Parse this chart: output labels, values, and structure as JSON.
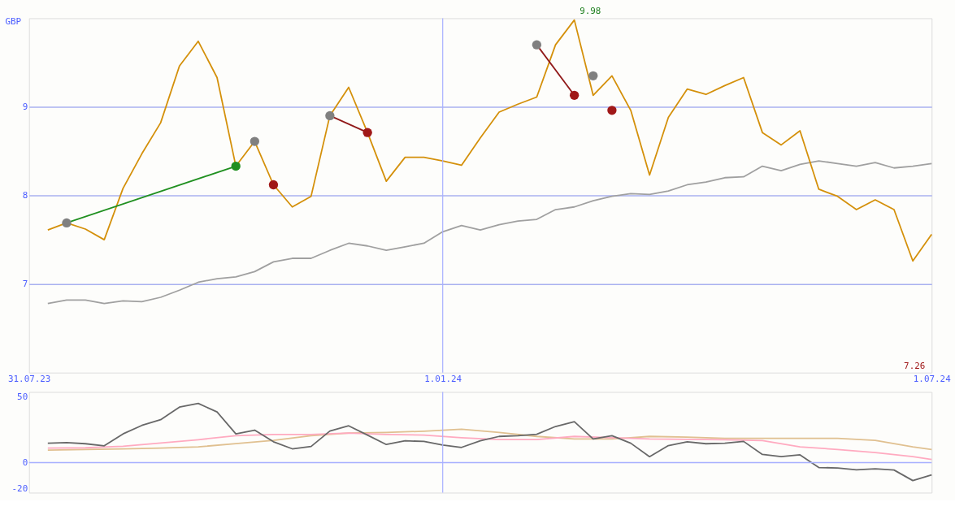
{
  "chart_data": [
    {
      "type": "line",
      "ylabel": "GBP",
      "xlim": [
        "2023-07-31",
        "2024-07-01"
      ],
      "ylim": [
        6,
        10
      ],
      "yticks": [
        7,
        8,
        9
      ],
      "xticks": [
        {
          "value": "2023-07-31",
          "label": "31.07.23"
        },
        {
          "value": "2024-01-01",
          "label": "1.01.24"
        },
        {
          "value": "2024-07-01",
          "label": "1.07.24"
        }
      ],
      "grid": "y",
      "ref_lines": [
        {
          "axis": "x",
          "value": "2024-01-01",
          "color": "#a8b0ff"
        }
      ],
      "annotations": [
        "9.98",
        "7.26"
      ],
      "x": [
        "2023-08-07",
        "2023-08-14",
        "2023-08-21",
        "2023-08-28",
        "2023-09-04",
        "2023-09-11",
        "2023-09-18",
        "2023-09-25",
        "2023-10-02",
        "2023-10-09",
        "2023-10-16",
        "2023-10-23",
        "2023-10-30",
        "2023-11-06",
        "2023-11-13",
        "2023-11-20",
        "2023-11-27",
        "2023-12-04",
        "2023-12-11",
        "2023-12-18",
        "2023-12-25",
        "2024-01-01",
        "2024-01-08",
        "2024-01-15",
        "2024-01-22",
        "2024-01-29",
        "2024-02-05",
        "2024-02-12",
        "2024-02-19",
        "2024-02-26",
        "2024-03-04",
        "2024-03-11",
        "2024-03-18",
        "2024-03-25",
        "2024-04-01",
        "2024-04-08",
        "2024-04-15",
        "2024-04-22",
        "2024-04-29",
        "2024-05-06",
        "2024-05-13",
        "2024-05-20",
        "2024-05-27",
        "2024-06-03",
        "2024-06-10",
        "2024-06-17",
        "2024-06-24",
        "2024-07-01"
      ],
      "series": [
        {
          "color": "#a0a0a0",
          "values": [
            6.78,
            6.82,
            6.82,
            6.78,
            6.81,
            6.8,
            6.85,
            6.93,
            7.02,
            7.06,
            7.08,
            7.14,
            7.25,
            7.29,
            7.29,
            7.38,
            7.46,
            7.43,
            7.38,
            7.42,
            7.46,
            7.59,
            7.66,
            7.61,
            7.67,
            7.71,
            7.73,
            7.84,
            7.87,
            7.94,
            7.99,
            8.02,
            8.01,
            8.05,
            8.12,
            8.15,
            8.2,
            8.21,
            8.33,
            8.28,
            8.35,
            8.39,
            8.36,
            8.33,
            8.37,
            8.31,
            8.33,
            8.36
          ]
        },
        {
          "color": "#d4900a",
          "values": [
            7.61,
            7.69,
            7.62,
            7.5,
            8.08,
            8.47,
            8.82,
            9.46,
            9.74,
            9.33,
            8.33,
            8.61,
            8.12,
            7.87,
            7.99,
            8.9,
            9.22,
            8.71,
            8.16,
            8.43,
            8.43,
            8.39,
            8.34,
            8.65,
            8.94,
            9.03,
            9.11,
            9.7,
            9.98,
            9.13,
            9.35,
            8.96,
            8.23,
            8.88,
            9.2,
            9.14,
            9.24,
            9.33,
            8.71,
            8.57,
            8.73,
            8.07,
            7.99,
            7.84,
            7.95,
            7.84,
            7.26,
            7.56
          ]
        },
        {
          "type": "line",
          "color": "#209020",
          "x": [
            "2023-08-14",
            "2023-10-16"
          ],
          "values": [
            7.69,
            8.33
          ]
        },
        {
          "type": "line",
          "color": "#901818",
          "x": [
            "2023-11-20",
            "2023-12-04"
          ],
          "values": [
            8.9,
            8.71
          ]
        },
        {
          "type": "line",
          "color": "#901818",
          "x": [
            "2024-02-05",
            "2024-02-19"
          ],
          "values": [
            9.7,
            9.13
          ]
        },
        {
          "type": "scatter",
          "color": "#808080",
          "x": [
            "2023-08-14",
            "2023-10-23",
            "2023-11-20",
            "2024-02-05",
            "2024-02-26"
          ],
          "values": [
            7.69,
            8.61,
            8.9,
            9.7,
            9.35
          ]
        },
        {
          "type": "scatter",
          "color": "#209020",
          "x": [
            "2023-10-16"
          ],
          "values": [
            8.33
          ]
        },
        {
          "type": "scatter",
          "color": "#a01818",
          "x": [
            "2023-10-30",
            "2023-12-04",
            "2024-02-19",
            "2024-03-04"
          ],
          "values": [
            8.12,
            8.71,
            9.13,
            8.96
          ]
        }
      ]
    },
    {
      "type": "line",
      "xlim": [
        "2023-07-31",
        "2024-07-01"
      ],
      "ylim": [
        -23,
        54
      ],
      "yticks": [
        -20,
        0,
        50
      ],
      "tick_labels": "y",
      "ref_lines": [
        {
          "axis": "x",
          "value": "2024-01-01",
          "color": "#a8b0ff"
        },
        {
          "axis": "y",
          "value": 0,
          "color": "#a8b0ff"
        }
      ],
      "x": [
        "2023-08-07",
        "2023-08-14",
        "2023-08-21",
        "2023-08-28",
        "2023-09-04",
        "2023-09-11",
        "2023-09-18",
        "2023-09-25",
        "2023-10-02",
        "2023-10-09",
        "2023-10-16",
        "2023-10-23",
        "2023-10-30",
        "2023-11-06",
        "2023-11-13",
        "2023-11-20",
        "2023-11-27",
        "2023-12-04",
        "2023-12-11",
        "2023-12-18",
        "2023-12-25",
        "2024-01-01",
        "2024-01-08",
        "2024-01-15",
        "2024-01-22",
        "2024-01-29",
        "2024-02-05",
        "2024-02-12",
        "2024-02-19",
        "2024-02-26",
        "2024-03-04",
        "2024-03-11",
        "2024-03-18",
        "2024-03-25",
        "2024-04-01",
        "2024-04-08",
        "2024-04-15",
        "2024-04-22",
        "2024-04-29",
        "2024-05-06",
        "2024-05-13",
        "2024-05-20",
        "2024-05-27",
        "2024-06-03",
        "2024-06-10",
        "2024-06-17",
        "2024-06-24",
        "2024-07-01"
      ],
      "series": [
        {
          "color": "#e0c090",
          "x": [
            "2023-08-07",
            "2023-08-21",
            "2023-09-04",
            "2023-09-18",
            "2023-10-02",
            "2023-10-16",
            "2023-10-30",
            "2023-11-13",
            "2023-11-27",
            "2023-12-11",
            "2023-12-25",
            "2024-01-08",
            "2024-01-22",
            "2024-02-05",
            "2024-02-19",
            "2024-03-04",
            "2024-03-18",
            "2024-04-01",
            "2024-04-15",
            "2024-04-29",
            "2024-05-13",
            "2024-05-27",
            "2024-06-10",
            "2024-06-24",
            "2024-07-01"
          ],
          "values": [
            9.5,
            10,
            10.5,
            11,
            12,
            14.5,
            17,
            20.5,
            22.5,
            23,
            24,
            25.5,
            23,
            20,
            18,
            18,
            20,
            19.5,
            18.5,
            18.5,
            18.5,
            18.5,
            17,
            12,
            10
          ]
        },
        {
          "color": "#ffaac0",
          "x": [
            "2023-08-07",
            "2023-08-21",
            "2023-09-04",
            "2023-09-18",
            "2023-10-02",
            "2023-10-16",
            "2023-10-30",
            "2023-11-13",
            "2023-11-27",
            "2023-12-11",
            "2023-12-25",
            "2024-01-08",
            "2024-01-22",
            "2024-02-05",
            "2024-02-19",
            "2024-03-04",
            "2024-03-18",
            "2024-04-01",
            "2024-04-15",
            "2024-04-29",
            "2024-05-13",
            "2024-05-27",
            "2024-06-10",
            "2024-06-24",
            "2024-07-01"
          ],
          "values": [
            11,
            11.3,
            12.5,
            15,
            17.5,
            20.5,
            21.5,
            21.5,
            22.5,
            21.5,
            21,
            19,
            17.6,
            17.6,
            20,
            19,
            18,
            17.8,
            17.5,
            16.8,
            12,
            10,
            7.6,
            4.5,
            2.4
          ]
        },
        {
          "color": "#686868",
          "values": [
            14.8,
            15.2,
            14.4,
            12.8,
            21.9,
            28.4,
            32.8,
            42.4,
            45.2,
            38.7,
            21.9,
            24.8,
            15.9,
            10.5,
            12.3,
            24.1,
            28.1,
            21,
            13.8,
            16.6,
            16.2,
            13.4,
            11.6,
            16.6,
            20,
            20.5,
            21.6,
            27.6,
            31.2,
            18.1,
            20.5,
            14.8,
            4.5,
            13,
            15.9,
            14.4,
            14.8,
            16.2,
            6.2,
            4.5,
            5.9,
            -3.8,
            -4.1,
            -5.5,
            -4.8,
            -5.7,
            -13.8,
            -9.5
          ]
        }
      ]
    }
  ]
}
